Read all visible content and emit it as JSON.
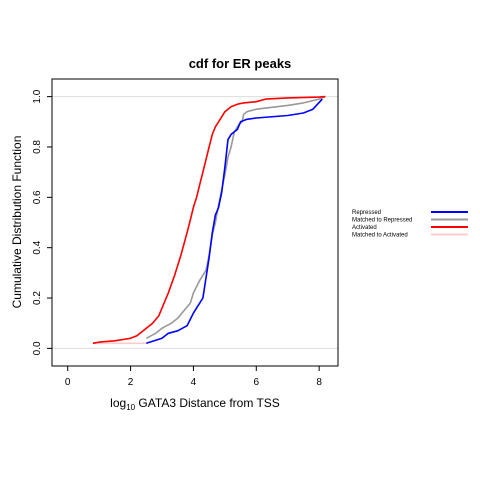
{
  "chart_data": {
    "type": "line",
    "title": "cdf for ER peaks",
    "xlabel": {
      "prefix": "log",
      "subscript": "10",
      "suffix": " GATA3 Distance from TSS"
    },
    "ylabel": "Cumulative Distribution Function",
    "xlim": [
      -0.5,
      8.6
    ],
    "ylim": [
      -0.07,
      1.07
    ],
    "x_ticks": [
      "0",
      "2",
      "4",
      "6",
      "8"
    ],
    "y_ticks": [
      "0.0",
      "0.2",
      "0.4",
      "0.6",
      "0.8",
      "1.0"
    ],
    "reference_lines": [
      0,
      1
    ],
    "reference_line_color": "#dddddd",
    "legend_position": "right",
    "series": [
      {
        "name": "Repressed",
        "color": "#0000ff",
        "x": [
          2.5,
          3.0,
          3.2,
          3.5,
          3.8,
          4.0,
          4.2,
          4.3,
          4.4,
          4.5,
          4.6,
          4.7,
          4.8,
          4.9,
          5.0,
          5.1,
          5.2,
          5.3,
          5.4,
          5.5,
          5.7,
          6.0,
          7.0,
          7.5,
          7.8,
          8.1
        ],
        "y": [
          0.02,
          0.04,
          0.06,
          0.07,
          0.09,
          0.14,
          0.18,
          0.2,
          0.28,
          0.36,
          0.46,
          0.53,
          0.56,
          0.62,
          0.72,
          0.83,
          0.85,
          0.86,
          0.87,
          0.9,
          0.91,
          0.915,
          0.925,
          0.935,
          0.95,
          0.99
        ]
      },
      {
        "name": "Matched to Repressed",
        "color": "#999999",
        "x": [
          2.5,
          2.8,
          3.0,
          3.3,
          3.5,
          3.7,
          3.9,
          4.0,
          4.2,
          4.4,
          4.5,
          4.6,
          4.7,
          4.8,
          4.9,
          5.0,
          5.1,
          5.2,
          5.3,
          5.45,
          5.55,
          5.6,
          5.7,
          6.0,
          7.0,
          7.5,
          8.0,
          8.2
        ],
        "y": [
          0.04,
          0.06,
          0.08,
          0.1,
          0.12,
          0.15,
          0.18,
          0.22,
          0.27,
          0.31,
          0.37,
          0.45,
          0.5,
          0.57,
          0.63,
          0.69,
          0.76,
          0.8,
          0.86,
          0.89,
          0.9,
          0.93,
          0.94,
          0.95,
          0.965,
          0.975,
          0.99,
          1.0
        ]
      },
      {
        "name": "Activated",
        "color": "#ff0000",
        "x": [
          0.8,
          1.0,
          1.5,
          2.0,
          2.2,
          2.5,
          2.7,
          2.9,
          3.0,
          3.2,
          3.4,
          3.6,
          3.8,
          3.9,
          4.0,
          4.1,
          4.2,
          4.3,
          4.4,
          4.5,
          4.6,
          4.7,
          4.8,
          4.9,
          5.0,
          5.2,
          5.4,
          5.6,
          6.0,
          6.3,
          7.0,
          8.0,
          8.2
        ],
        "y": [
          0.02,
          0.025,
          0.03,
          0.04,
          0.05,
          0.08,
          0.1,
          0.13,
          0.16,
          0.22,
          0.29,
          0.37,
          0.46,
          0.51,
          0.56,
          0.6,
          0.65,
          0.7,
          0.75,
          0.8,
          0.85,
          0.88,
          0.9,
          0.92,
          0.94,
          0.96,
          0.97,
          0.975,
          0.98,
          0.99,
          0.995,
          0.998,
          1.0
        ]
      },
      {
        "name": "Matched to Activated",
        "color": "#ffcccc",
        "x": [
          0.8,
          1.5,
          2.0,
          2.5
        ],
        "y": [
          0.02,
          0.02,
          0.02,
          0.02
        ]
      }
    ]
  }
}
